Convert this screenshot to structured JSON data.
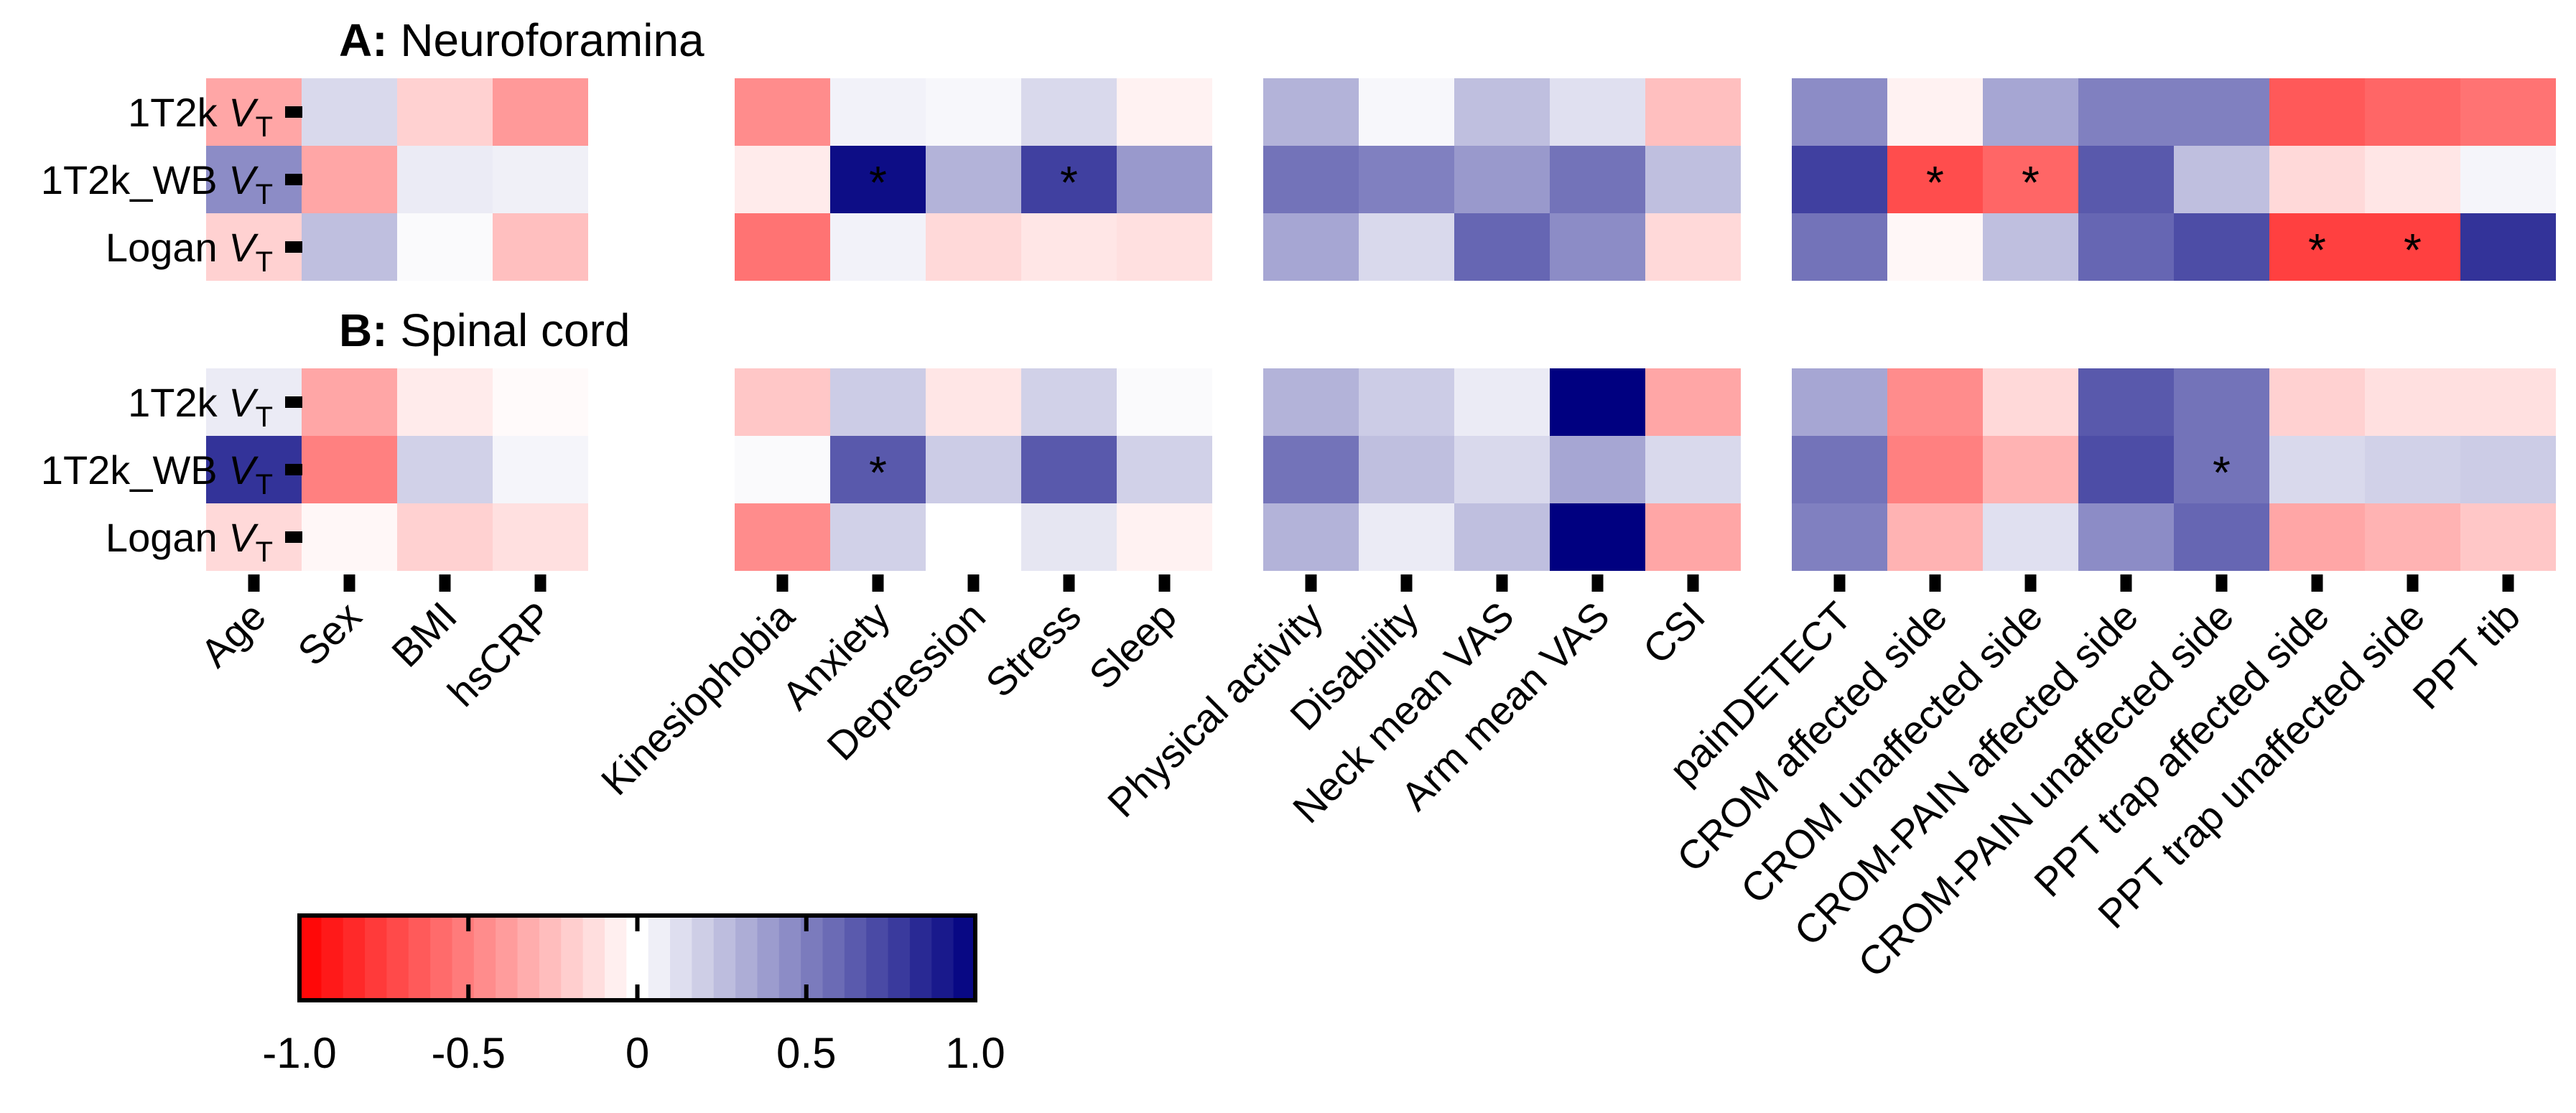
{
  "chart_data": {
    "type": "heatmap",
    "color_scale": {
      "min": -1.0,
      "max": 1.0,
      "negative_color": "#ff0000",
      "zero_color": "#ffffff",
      "positive_color": "#000080",
      "ticks": [
        "-1.0",
        "-0.5",
        "0",
        "0.5",
        "1.0"
      ]
    },
    "column_groups": [
      [
        "Age",
        "Sex",
        "BMI",
        "hsCRP"
      ],
      [
        "Kinesiophobia",
        "Anxiety",
        "Depression",
        "Stress",
        "Sleep"
      ],
      [
        "Physical activity",
        "Disability",
        "Neck mean VAS",
        "Arm mean VAS",
        "CSI"
      ],
      [
        "painDETECT",
        "CROM affected side",
        "CROM unaffected side",
        "CROM-PAIN affected side",
        "CROM-PAIN unaffected side",
        "PPT trap affected side",
        "PPT trap unaffected side",
        "PPT tib"
      ]
    ],
    "rows": [
      {
        "label": "1T2k ",
        "sub_italic": "V",
        "sub": "T"
      },
      {
        "label": "1T2k_WB ",
        "sub_italic": "V",
        "sub": "T"
      },
      {
        "label": "Logan ",
        "sub_italic": "V",
        "sub": "T"
      }
    ],
    "panels": [
      {
        "tag": "A:",
        "title": "Neuroforamina",
        "values": [
          [
            -0.35,
            0.15,
            -0.18,
            -0.4,
            -0.45,
            0.05,
            0.03,
            0.15,
            -0.05,
            0.3,
            0.03,
            0.25,
            0.12,
            -0.25,
            0.45,
            -0.05,
            0.35,
            0.5,
            0.5,
            -0.65,
            -0.6,
            -0.55
          ],
          [
            0.45,
            -0.35,
            0.08,
            0.06,
            -0.08,
            0.95,
            0.3,
            0.75,
            0.4,
            0.55,
            0.5,
            0.4,
            0.55,
            0.25,
            0.75,
            -0.7,
            -0.6,
            0.65,
            0.25,
            -0.15,
            -0.1,
            0.04
          ],
          [
            -0.18,
            0.25,
            0.02,
            -0.25,
            -0.55,
            0.05,
            -0.15,
            -0.1,
            -0.12,
            0.35,
            0.15,
            0.6,
            0.45,
            -0.15,
            0.55,
            -0.03,
            0.25,
            0.6,
            0.7,
            -0.75,
            -0.75,
            0.8
          ]
        ],
        "significant": [
          [
            1,
            5
          ],
          [
            1,
            7
          ],
          [
            1,
            15
          ],
          [
            1,
            16
          ],
          [
            2,
            19
          ],
          [
            2,
            20
          ]
        ]
      },
      {
        "tag": "B:",
        "title": "Spinal cord",
        "values": [
          [
            0.08,
            -0.35,
            -0.08,
            -0.02,
            -0.22,
            0.2,
            -0.1,
            0.18,
            0.02,
            0.3,
            0.2,
            0.08,
            1.0,
            -0.35,
            0.35,
            -0.45,
            -0.15,
            0.65,
            0.55,
            -0.18,
            -0.12,
            -0.12
          ],
          [
            0.8,
            -0.5,
            0.18,
            0.04,
            0.02,
            0.65,
            0.2,
            0.65,
            0.18,
            0.55,
            0.25,
            0.15,
            0.35,
            0.15,
            0.55,
            -0.5,
            -0.3,
            0.7,
            0.55,
            0.15,
            0.18,
            0.2
          ],
          [
            -0.15,
            -0.03,
            -0.18,
            -0.12,
            -0.45,
            0.18,
            0.0,
            0.1,
            -0.05,
            0.3,
            0.08,
            0.25,
            1.0,
            -0.35,
            0.5,
            -0.3,
            0.12,
            0.45,
            0.6,
            -0.35,
            -0.3,
            -0.22
          ]
        ],
        "significant": [
          [
            1,
            5
          ],
          [
            1,
            18
          ]
        ]
      }
    ]
  }
}
